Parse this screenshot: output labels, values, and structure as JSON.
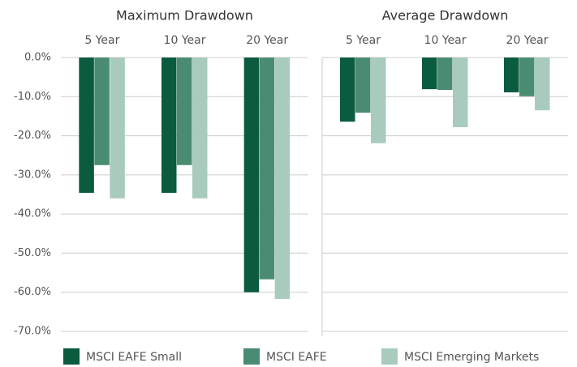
{
  "chart_data": [
    {
      "type": "bar",
      "title": "Maximum Drawdown",
      "categories": [
        "5 Year",
        "10 Year",
        "20 Year"
      ],
      "series": [
        {
          "name": "MSCI EAFE Small",
          "color": "#0b5b3f",
          "values": [
            -34.6,
            -34.6,
            -60.0
          ]
        },
        {
          "name": "MSCI EAFE",
          "color": "#4a8c72",
          "values": [
            -27.5,
            -27.5,
            -56.7
          ]
        },
        {
          "name": "MSCI Emerging Markets",
          "color": "#a9cbbd",
          "values": [
            -36.0,
            -36.0,
            -61.7
          ]
        }
      ],
      "ylim": [
        -70,
        0
      ],
      "yticks": [
        {
          "value": 0,
          "label": "0.0%"
        },
        {
          "value": -10,
          "label": "-10.0%"
        },
        {
          "value": -20,
          "label": "-20.0%"
        },
        {
          "value": -30,
          "label": "-30.0%"
        },
        {
          "value": -40,
          "label": "-40.0%"
        },
        {
          "value": -50,
          "label": "-50.0%"
        },
        {
          "value": -60,
          "label": "-60.0%"
        },
        {
          "value": -70,
          "label": "-70.0%"
        }
      ],
      "grid": true
    },
    {
      "type": "bar",
      "title": "Average Drawdown",
      "categories": [
        "5 Year",
        "10 Year",
        "20 Year"
      ],
      "series": [
        {
          "name": "MSCI EAFE Small",
          "color": "#0b5b3f",
          "values": [
            -16.4,
            -8.1,
            -8.9
          ]
        },
        {
          "name": "MSCI EAFE",
          "color": "#4a8c72",
          "values": [
            -14.1,
            -8.3,
            -9.9
          ]
        },
        {
          "name": "MSCI Emerging Markets",
          "color": "#a9cbbd",
          "values": [
            -21.9,
            -17.8,
            -13.5
          ]
        }
      ],
      "ylim": [
        -70,
        0
      ],
      "grid": true
    }
  ]
}
